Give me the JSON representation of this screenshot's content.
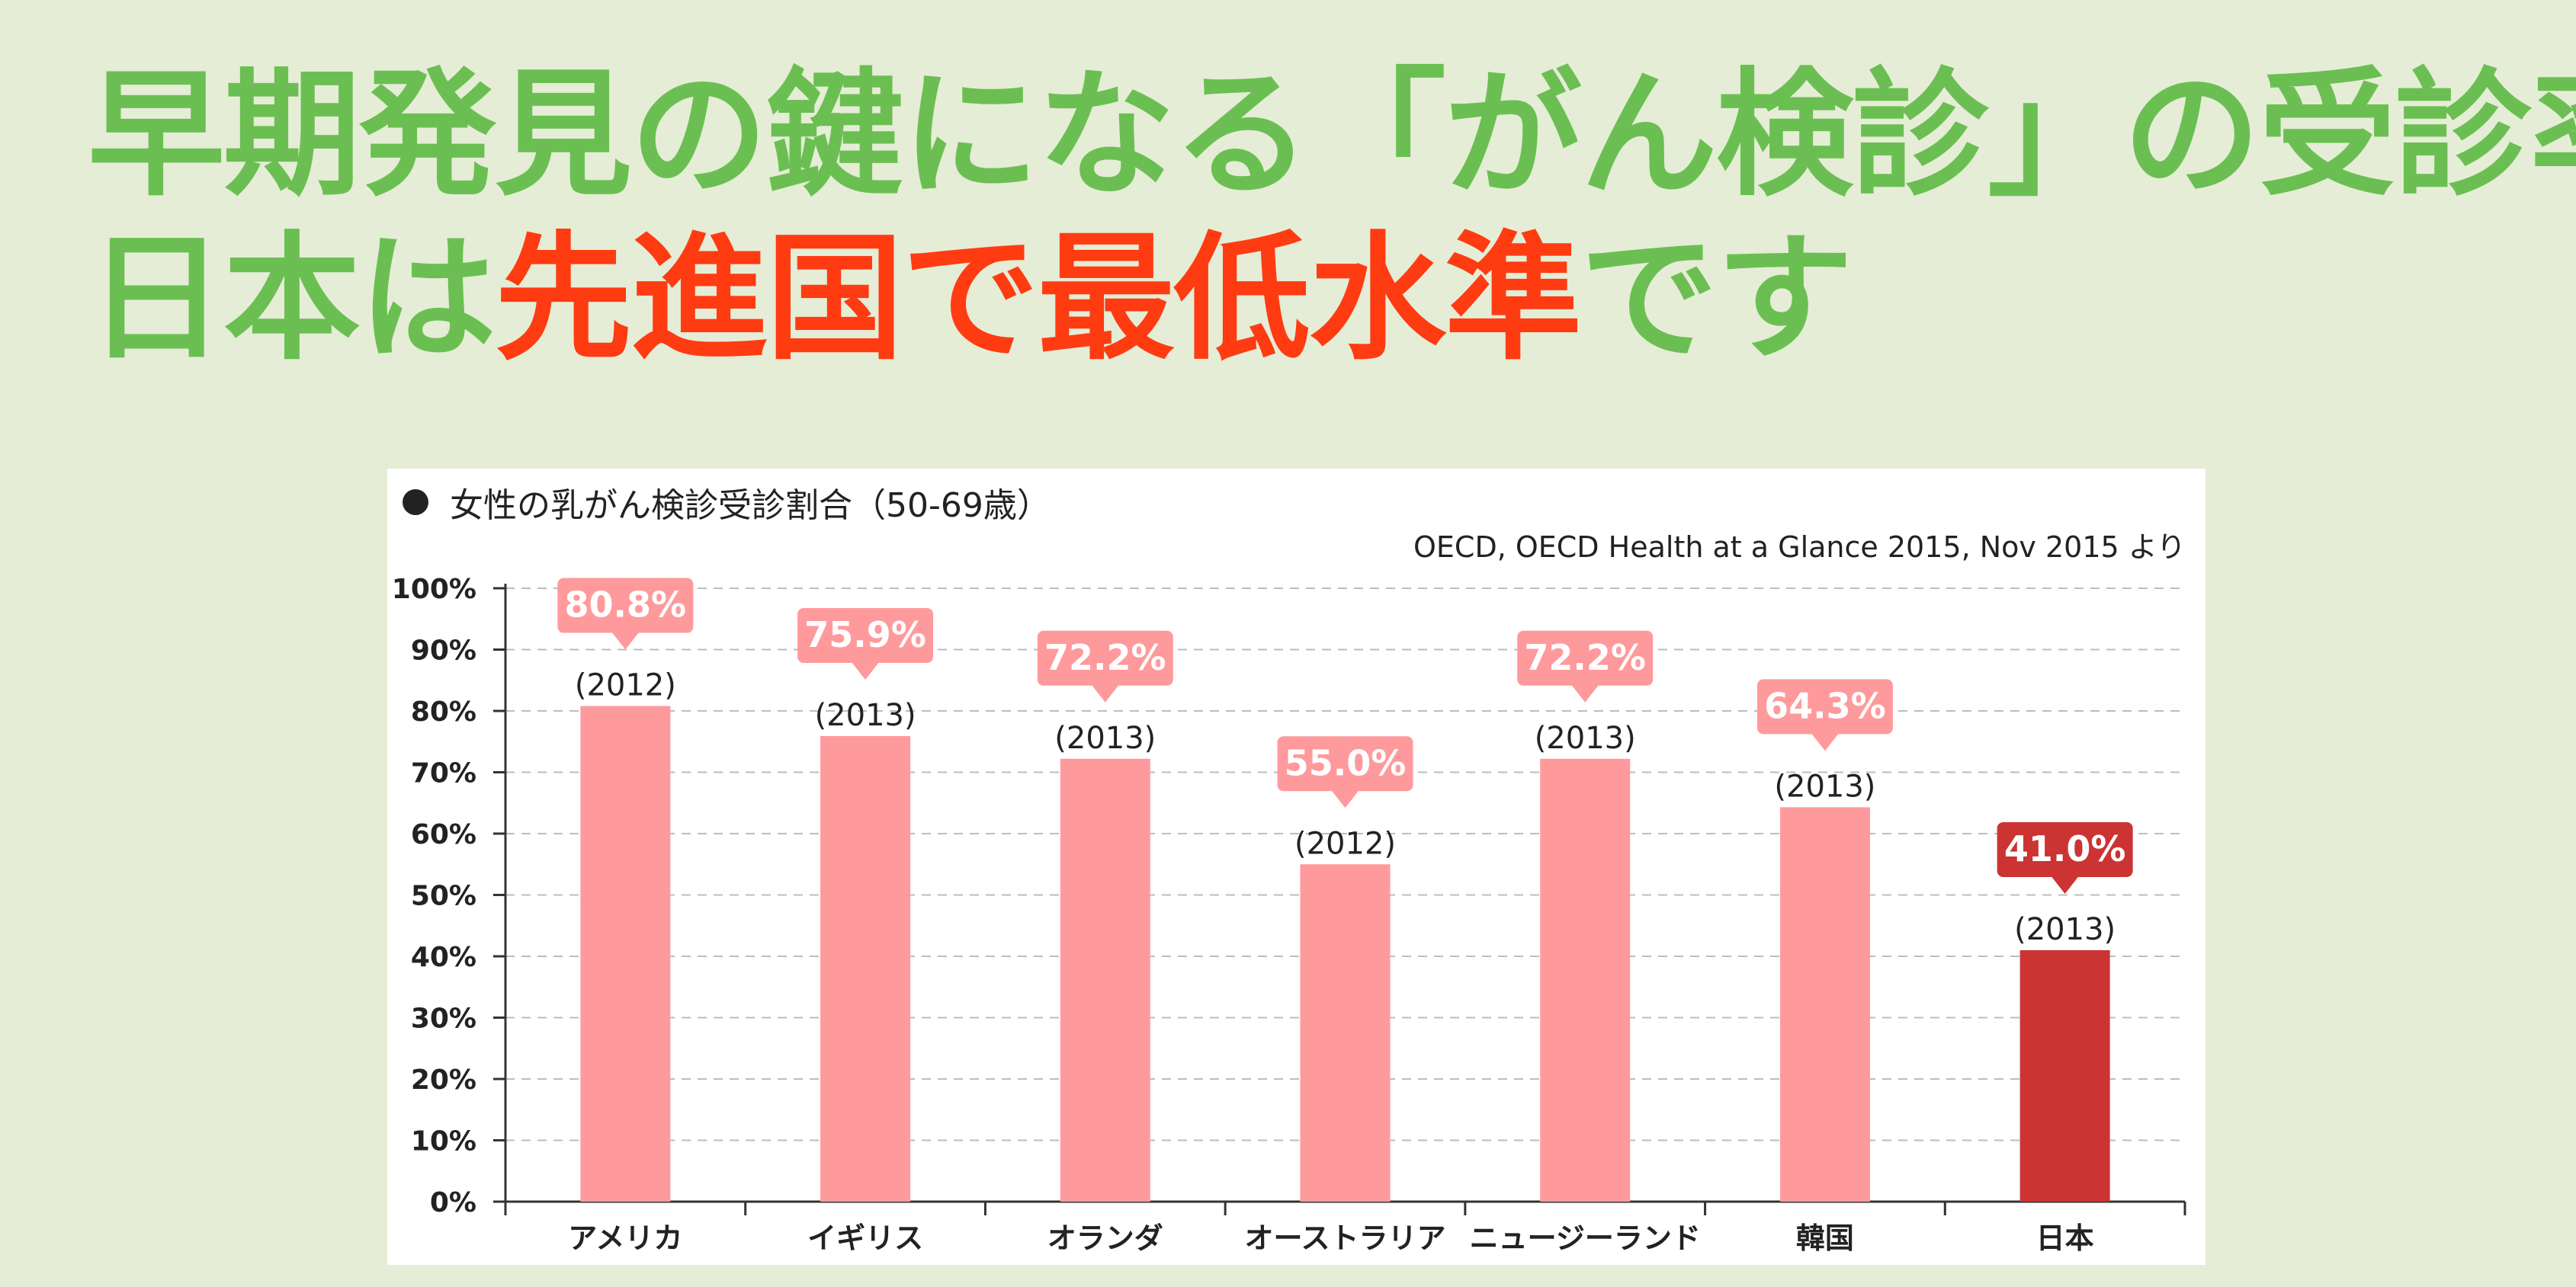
{
  "headline": {
    "line1": "早期発見の鍵になる「がん検診」の受診率",
    "line2_prefix": "日本は",
    "line2_highlight": "先進国で最低水準",
    "line2_suffix": "です"
  },
  "colors": {
    "background": "#e5edd6",
    "green": "#6bbf52",
    "highlight_red": "#ff3b12",
    "bar": "#ff9a9c",
    "bar_highlight": "#cc3333",
    "callout": "#ff9a9c",
    "callout_highlight": "#cc3333"
  },
  "chart_data": {
    "type": "bar",
    "title": "女性の乳がん検診受診割合（50-69歳）",
    "source": "OECD, OECD Health at a Glance 2015, Nov 2015 より",
    "categories": [
      "アメリカ",
      "イギリス",
      "オランダ",
      "オーストラリア",
      "ニュージーランド",
      "韓国",
      "日本"
    ],
    "values": [
      80.8,
      75.9,
      72.2,
      55.0,
      72.2,
      64.3,
      41.0
    ],
    "value_labels": [
      "80.8%",
      "75.9%",
      "72.2%",
      "55.0%",
      "72.2%",
      "64.3%",
      "41.0%"
    ],
    "years": [
      "(2012)",
      "(2013)",
      "(2013)",
      "(2012)",
      "(2013)",
      "(2013)",
      "(2013)"
    ],
    "highlight_index": 6,
    "ylim": [
      0,
      100
    ],
    "yticks": [
      "0%",
      "10%",
      "20%",
      "30%",
      "40%",
      "50%",
      "60%",
      "70%",
      "80%",
      "90%",
      "100%"
    ],
    "grid": true,
    "xlabel": "",
    "ylabel": ""
  }
}
